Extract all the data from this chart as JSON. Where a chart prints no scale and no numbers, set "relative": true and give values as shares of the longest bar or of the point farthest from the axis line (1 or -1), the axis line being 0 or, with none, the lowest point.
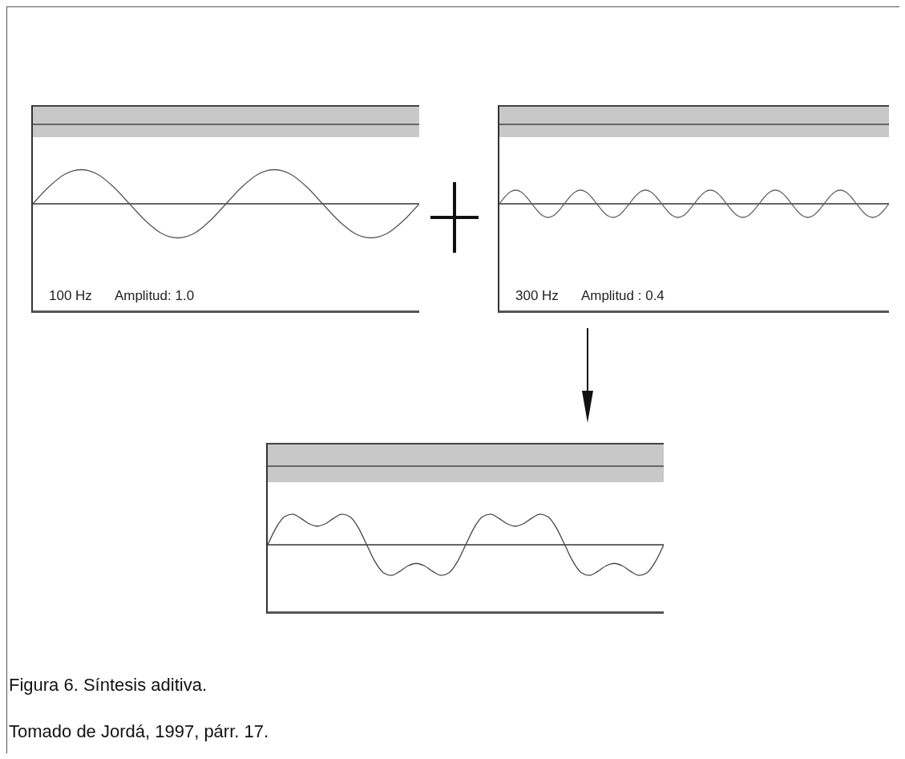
{
  "chart_data": [
    {
      "type": "line",
      "relative": true,
      "annotations": [
        "100 Hz",
        "Amplitud: 1.0"
      ],
      "categories": [
        null,
        null,
        null,
        null,
        null,
        null,
        null,
        null,
        null,
        null,
        null,
        null,
        null,
        null,
        null,
        null,
        null,
        null,
        null,
        null,
        null,
        null,
        null,
        null,
        null
      ],
      "series": [
        {
          "color": "#555555",
          "values": [
            0,
            0.5,
            0.87,
            1,
            0.87,
            0.5,
            0,
            -0.5,
            -0.87,
            -1,
            -0.87,
            -0.5,
            0,
            0.5,
            0.87,
            1,
            0.87,
            0.5,
            0,
            -0.5,
            -0.87,
            -1,
            -0.87,
            -0.5,
            0
          ]
        }
      ]
    },
    {
      "type": "line",
      "relative": true,
      "annotations": [
        "300 Hz",
        "Amplitud : 0.4"
      ],
      "categories": [
        null,
        null,
        null,
        null,
        null,
        null,
        null,
        null,
        null,
        null,
        null,
        null,
        null,
        null,
        null,
        null,
        null,
        null,
        null,
        null,
        null,
        null,
        null,
        null,
        null,
        null,
        null,
        null,
        null,
        null,
        null,
        null,
        null,
        null,
        null,
        null,
        null,
        null,
        null,
        null,
        null,
        null,
        null,
        null,
        null,
        null,
        null,
        null,
        null,
        null,
        null,
        null,
        null,
        null,
        null,
        null,
        null,
        null,
        null,
        null,
        null,
        null,
        null,
        null,
        null,
        null,
        null,
        null,
        null,
        null,
        null,
        null,
        null
      ],
      "series": [
        {
          "color": "#666666",
          "values": [
            0,
            0.5,
            0.87,
            1,
            0.87,
            0.5,
            0,
            -0.5,
            -0.87,
            -1,
            -0.87,
            -0.5,
            0,
            0.5,
            0.87,
            1,
            0.87,
            0.5,
            0,
            -0.5,
            -0.87,
            -1,
            -0.87,
            -0.5,
            0,
            0.5,
            0.87,
            1,
            0.87,
            0.5,
            0,
            -0.5,
            -0.87,
            -1,
            -0.87,
            -0.5,
            0,
            0.5,
            0.87,
            1,
            0.87,
            0.5,
            0,
            -0.5,
            -0.87,
            -1,
            -0.87,
            -0.5,
            0,
            0.5,
            0.87,
            1,
            0.87,
            0.5,
            0,
            -0.5,
            -0.87,
            -1,
            -0.87,
            -0.5,
            0,
            0.5,
            0.87,
            1,
            0.87,
            0.5,
            0,
            -0.5,
            -0.87,
            -1,
            -0.87,
            -0.5,
            0
          ]
        }
      ]
    },
    {
      "type": "line",
      "relative": true,
      "categories": [
        null,
        null,
        null,
        null,
        null,
        null,
        null,
        null,
        null,
        null,
        null,
        null,
        null,
        null,
        null,
        null,
        null,
        null,
        null,
        null,
        null,
        null,
        null,
        null,
        null,
        null,
        null,
        null,
        null,
        null,
        null,
        null,
        null,
        null,
        null,
        null,
        null,
        null,
        null,
        null,
        null,
        null,
        null,
        null,
        null,
        null,
        null,
        null,
        null
      ],
      "series": [
        {
          "color": "#444444",
          "values": [
            0,
            0.55,
            0.91,
            1,
            0.87,
            0.69,
            0.61,
            0.69,
            0.87,
            1,
            0.91,
            0.55,
            0,
            -0.55,
            -0.91,
            -1,
            -0.87,
            -0.69,
            -0.61,
            -0.69,
            -0.87,
            -1,
            -0.91,
            -0.55,
            0,
            0.55,
            0.91,
            1,
            0.87,
            0.69,
            0.61,
            0.69,
            0.87,
            1,
            0.91,
            0.55,
            0,
            -0.55,
            -0.91,
            -1,
            -0.87,
            -0.69,
            -0.61,
            -0.69,
            -0.87,
            -1,
            -0.91,
            -0.55,
            0
          ]
        }
      ]
    },
    {
      "type": "other",
      "annotations": [
        "Figura 6. Síntesis aditiva.",
        "Tomado de Jordá, 1997, párr. 17."
      ]
    }
  ]
}
